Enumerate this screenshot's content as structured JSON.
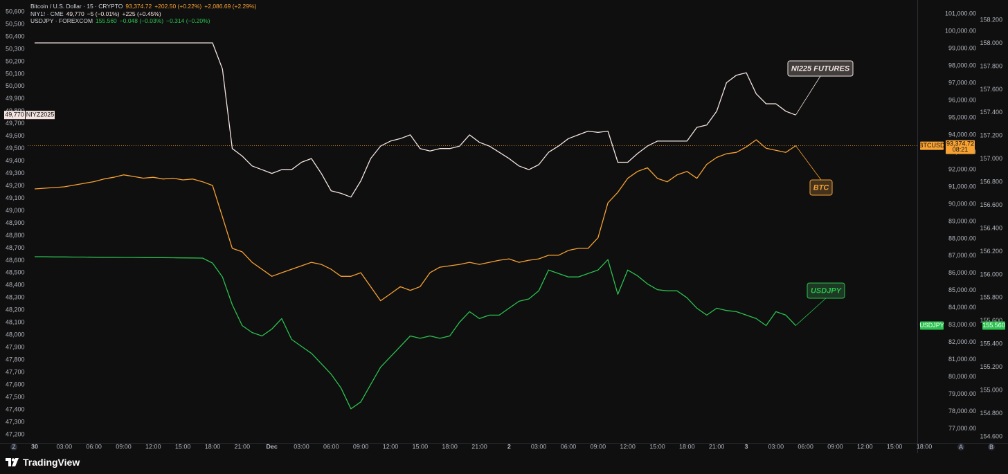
{
  "chart_data": {
    "type": "line",
    "brand": "TradingView",
    "buttons": [
      "Z",
      "A",
      "B"
    ],
    "x": [
      0,
      1,
      2,
      3,
      4,
      5,
      6,
      7,
      8,
      9,
      10,
      11,
      12,
      13,
      14,
      15,
      16,
      17,
      18,
      19,
      20,
      21,
      22,
      23,
      24,
      25,
      26,
      27,
      28,
      29,
      30,
      31,
      32,
      33,
      34,
      35,
      36,
      37,
      38,
      39,
      40,
      41,
      42,
      43,
      44,
      45,
      46,
      47,
      48,
      49,
      50,
      51,
      52,
      53,
      54,
      55,
      56,
      57,
      58,
      59,
      60,
      61,
      62,
      63,
      64,
      65,
      66,
      67,
      68,
      69,
      70,
      71,
      72,
      73,
      74,
      75,
      76,
      77
    ],
    "xlim": [
      -0.7,
      89.3
    ],
    "xticks": [
      {
        "value": 0,
        "label": "30"
      },
      {
        "value": 3,
        "label": "03:00"
      },
      {
        "value": 6,
        "label": "06:00"
      },
      {
        "value": 9,
        "label": "09:00"
      },
      {
        "value": 12,
        "label": "12:00"
      },
      {
        "value": 15,
        "label": "15:00"
      },
      {
        "value": 18,
        "label": "18:00"
      },
      {
        "value": 21,
        "label": "21:00"
      },
      {
        "value": 24,
        "label": "Dec"
      },
      {
        "value": 27,
        "label": "03:00"
      },
      {
        "value": 30,
        "label": "06:00"
      },
      {
        "value": 33,
        "label": "09:00"
      },
      {
        "value": 36,
        "label": "12:00"
      },
      {
        "value": 39,
        "label": "15:00"
      },
      {
        "value": 42,
        "label": "18:00"
      },
      {
        "value": 45,
        "label": "21:00"
      },
      {
        "value": 48,
        "label": "2"
      },
      {
        "value": 51,
        "label": "03:00"
      },
      {
        "value": 54,
        "label": "06:00"
      },
      {
        "value": 57,
        "label": "09:00"
      },
      {
        "value": 60,
        "label": "12:00"
      },
      {
        "value": 63,
        "label": "15:00"
      },
      {
        "value": 66,
        "label": "18:00"
      },
      {
        "value": 69,
        "label": "21:00"
      },
      {
        "value": 72,
        "label": "3"
      },
      {
        "value": 75,
        "label": "03:00"
      },
      {
        "value": 78,
        "label": "06:00"
      },
      {
        "value": 81,
        "label": "09:00"
      },
      {
        "value": 84,
        "label": "12:00"
      },
      {
        "value": 87,
        "label": "15:00"
      },
      {
        "value": 90,
        "label": "18:00"
      }
    ],
    "ylim": [
      47133,
      50667
    ],
    "yticks": [
      {
        "value": 47200,
        "label": "47,200"
      },
      {
        "value": 47300,
        "label": "47,300"
      },
      {
        "value": 47400,
        "label": "47,400"
      },
      {
        "value": 47500,
        "label": "47,500"
      },
      {
        "value": 47600,
        "label": "47,600"
      },
      {
        "value": 47700,
        "label": "47,700"
      },
      {
        "value": 47800,
        "label": "47,800"
      },
      {
        "value": 47900,
        "label": "47,900"
      },
      {
        "value": 48000,
        "label": "48,000"
      },
      {
        "value": 48100,
        "label": "48,100"
      },
      {
        "value": 48200,
        "label": "48,200"
      },
      {
        "value": 48300,
        "label": "48,300"
      },
      {
        "value": 48400,
        "label": "48,400"
      },
      {
        "value": 48500,
        "label": "48,500"
      },
      {
        "value": 48600,
        "label": "48,600"
      },
      {
        "value": 48700,
        "label": "48,700"
      },
      {
        "value": 48800,
        "label": "48,800"
      },
      {
        "value": 48900,
        "label": "48,900"
      },
      {
        "value": 49000,
        "label": "49,000"
      },
      {
        "value": 49100,
        "label": "49,100"
      },
      {
        "value": 49200,
        "label": "49,200"
      },
      {
        "value": 49300,
        "label": "49,300"
      },
      {
        "value": 49400,
        "label": "49,400"
      },
      {
        "value": 49500,
        "label": "49,500"
      },
      {
        "value": 49600,
        "label": "49,600"
      },
      {
        "value": 49700,
        "label": "49,700"
      },
      {
        "value": 49800,
        "label": "49,800"
      },
      {
        "value": 49900,
        "label": "49,900"
      },
      {
        "value": 50000,
        "label": "50,000"
      },
      {
        "value": 50100,
        "label": "50,100"
      },
      {
        "value": 50200,
        "label": "50,200"
      },
      {
        "value": 50300,
        "label": "50,300"
      },
      {
        "value": 50400,
        "label": "50,400"
      },
      {
        "value": 50500,
        "label": "50,500"
      },
      {
        "value": 50600,
        "label": "50,600"
      }
    ],
    "y2lim": [
      76186,
      101607
    ],
    "y2ticks": [
      {
        "value": 77000,
        "label": "77,000.00"
      },
      {
        "value": 78000,
        "label": "78,000.00"
      },
      {
        "value": 79000,
        "label": "79,000.00"
      },
      {
        "value": 80000,
        "label": "80,000.00"
      },
      {
        "value": 81000,
        "label": "81,000.00"
      },
      {
        "value": 82000,
        "label": "82,000.00"
      },
      {
        "value": 83000,
        "label": "83,000.00"
      },
      {
        "value": 84000,
        "label": "84,000.00"
      },
      {
        "value": 85000,
        "label": "85,000.00"
      },
      {
        "value": 86000,
        "label": "86,000.00"
      },
      {
        "value": 87000,
        "label": "87,000.00"
      },
      {
        "value": 88000,
        "label": "88,000.00"
      },
      {
        "value": 89000,
        "label": "89,000.00"
      },
      {
        "value": 90000,
        "label": "90,000.00"
      },
      {
        "value": 91000,
        "label": "91,000.00"
      },
      {
        "value": 92000,
        "label": "92,000.00"
      },
      {
        "value": 93000,
        "label": "93,000.00"
      },
      {
        "value": 94000,
        "label": "94,000.00"
      },
      {
        "value": 95000,
        "label": "95,000.00"
      },
      {
        "value": 96000,
        "label": "96,000.00"
      },
      {
        "value": 97000,
        "label": "97,000.00"
      },
      {
        "value": 98000,
        "label": "98,000.00"
      },
      {
        "value": 99000,
        "label": "99,000.00"
      },
      {
        "value": 100000,
        "label": "100,000.00"
      },
      {
        "value": 101000,
        "label": "101,000.00"
      }
    ],
    "y3lim": [
      154.546,
      158.344
    ],
    "y3ticks": [
      {
        "value": 154.6,
        "label": "154.600"
      },
      {
        "value": 154.8,
        "label": "154.800"
      },
      {
        "value": 155,
        "label": "155.000"
      },
      {
        "value": 155.2,
        "label": "155.200"
      },
      {
        "value": 155.4,
        "label": "155.400"
      },
      {
        "value": 155.6,
        "label": "155.600"
      },
      {
        "value": 155.8,
        "label": "155.800"
      },
      {
        "value": 156,
        "label": "156.000"
      },
      {
        "value": 156.2,
        "label": "156.200"
      },
      {
        "value": 156.4,
        "label": "156.400"
      },
      {
        "value": 156.6,
        "label": "156.600"
      },
      {
        "value": 156.8,
        "label": "156.800"
      },
      {
        "value": 157,
        "label": "157.000"
      },
      {
        "value": 157.2,
        "label": "157.200"
      },
      {
        "value": 157.4,
        "label": "157.400"
      },
      {
        "value": 157.6,
        "label": "157.600"
      },
      {
        "value": 157.8,
        "label": "157.800"
      },
      {
        "value": 158,
        "label": "158.000"
      },
      {
        "value": 158.2,
        "label": "158.200"
      }
    ],
    "grid": false,
    "series": [
      {
        "name": "Bitcoin / U.S. Dollar · 15 · CRYPTO",
        "symbol": "BTCUSD",
        "color": "#f7a233",
        "axis": "y2",
        "last_label": "93,374.72",
        "countdown": "08:21",
        "changes": [
          "+202.50 (+0.22%)",
          "+2,086.69 (+2.29%)"
        ],
        "annotation": "BTC",
        "values": [
          90880,
          90920,
          90960,
          91000,
          91100,
          91200,
          91300,
          91450,
          91550,
          91690,
          91600,
          91500,
          91550,
          91450,
          91500,
          91400,
          91450,
          91290,
          91080,
          89260,
          87440,
          87240,
          86630,
          86230,
          85820,
          86030,
          86230,
          86430,
          86630,
          86510,
          86230,
          85820,
          85820,
          86030,
          85220,
          84410,
          84810,
          85220,
          85010,
          85220,
          86030,
          86350,
          86430,
          86510,
          86630,
          86510,
          86630,
          86750,
          86830,
          86630,
          86750,
          86830,
          87040,
          87040,
          87320,
          87440,
          87440,
          88050,
          90070,
          90680,
          91490,
          91890,
          92100,
          91490,
          91290,
          91690,
          91890,
          91490,
          92300,
          92700,
          92910,
          92990,
          93310,
          93720,
          93230,
          93110,
          92990,
          93374.72
        ]
      },
      {
        "name": "NIY1! · CME",
        "symbol": "NIYZ2025",
        "color": "#f4e4e0",
        "axis": "y",
        "last_label": "49,770",
        "changes": [
          "−5 (−0.01%)",
          "+225 (+0.45%)"
        ],
        "annotation": "NI225 FUTURES",
        "values": [
          50350,
          50350,
          50350,
          50350,
          50350,
          50350,
          50350,
          50350,
          50350,
          50350,
          50350,
          50350,
          50350,
          50350,
          50350,
          50350,
          50350,
          50350,
          50350,
          50140,
          49500,
          49440,
          49360,
          49330,
          49300,
          49330,
          49330,
          49390,
          49420,
          49300,
          49160,
          49140,
          49110,
          49240,
          49420,
          49520,
          49560,
          49580,
          49610,
          49500,
          49480,
          49500,
          49500,
          49520,
          49610,
          49550,
          49520,
          49470,
          49420,
          49360,
          49330,
          49370,
          49470,
          49520,
          49580,
          49610,
          49640,
          49630,
          49640,
          49390,
          49390,
          49460,
          49520,
          49560,
          49560,
          49560,
          49560,
          49670,
          49690,
          49800,
          50030,
          50090,
          50110,
          49940,
          49860,
          49860,
          49800,
          49770
        ]
      },
      {
        "name": "USDJPY · FOREXCOM",
        "symbol": "USDJPY",
        "color": "#2bc24f",
        "axis": "y3",
        "last_label": "155.560",
        "changes": [
          "−0.048 (−0.03%)",
          "−0.314 (−0.20%)"
        ],
        "annotation": "USDJPY",
        "values": [
          156.155,
          156.155,
          156.153,
          156.153,
          156.152,
          156.152,
          156.151,
          156.15,
          156.15,
          156.149,
          156.149,
          156.148,
          156.147,
          156.147,
          156.146,
          156.145,
          156.144,
          156.143,
          156.1,
          155.98,
          155.74,
          155.56,
          155.5,
          155.47,
          155.53,
          155.62,
          155.44,
          155.38,
          155.32,
          155.23,
          155.14,
          155.02,
          154.84,
          154.9,
          155.05,
          155.2,
          155.29,
          155.38,
          155.47,
          155.45,
          155.47,
          155.45,
          155.47,
          155.59,
          155.68,
          155.62,
          155.65,
          155.65,
          155.71,
          155.77,
          155.79,
          155.86,
          156.04,
          156.01,
          155.98,
          155.98,
          156.01,
          156.04,
          156.13,
          155.83,
          156.04,
          155.99,
          155.92,
          155.87,
          155.86,
          155.86,
          155.8,
          155.71,
          155.65,
          155.71,
          155.69,
          155.68,
          155.65,
          155.62,
          155.56,
          155.68,
          155.65,
          155.56
        ]
      }
    ]
  }
}
